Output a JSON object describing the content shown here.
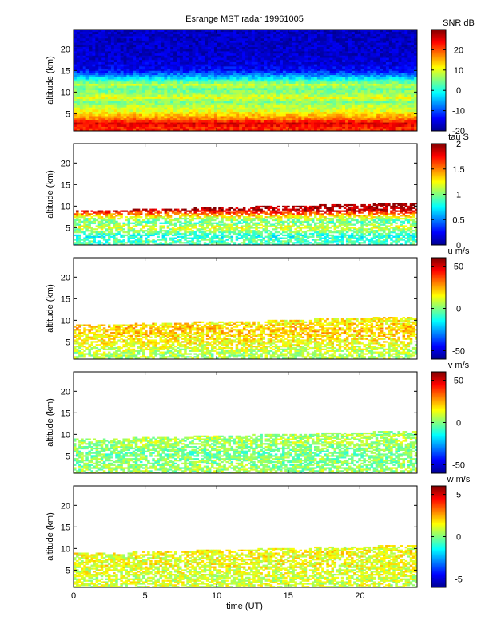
{
  "title": "Esrange MST radar 19961005",
  "xlabel": "time (UT)",
  "colormap": [
    "#00008f",
    "#0000ff",
    "#0080ff",
    "#00ffff",
    "#80ff80",
    "#ffff00",
    "#ff8000",
    "#ff0000",
    "#800000"
  ],
  "chart_data": [
    {
      "type": "heatmap",
      "variable": "SNR",
      "colorbar_label": "SNR dB",
      "xlim": [
        0,
        24
      ],
      "ylim": [
        1,
        24.5
      ],
      "xticks": [
        0,
        5,
        10,
        15,
        20
      ],
      "ylabel": "altitude (km)",
      "yticks": [
        5,
        10,
        15,
        20
      ],
      "clim": [
        -20,
        30
      ],
      "cticks": [
        -20,
        -10,
        0,
        10,
        20
      ],
      "profile": [
        {
          "alt": 1.5,
          "value": 22
        },
        {
          "alt": 2.5,
          "value": 25
        },
        {
          "alt": 3.5,
          "value": 18
        },
        {
          "alt": 4.5,
          "value": 14
        },
        {
          "alt": 5.5,
          "value": 10
        },
        {
          "alt": 6.5,
          "value": 8
        },
        {
          "alt": 7.5,
          "value": 5
        },
        {
          "alt": 8.5,
          "value": 10
        },
        {
          "alt": 9.5,
          "value": 6
        },
        {
          "alt": 10.5,
          "value": 4
        },
        {
          "alt": 11.5,
          "value": 8
        },
        {
          "alt": 12.5,
          "value": 1
        },
        {
          "alt": 13.5,
          "value": -6
        },
        {
          "alt": 15,
          "value": -14
        },
        {
          "alt": 17,
          "value": -16
        },
        {
          "alt": 20,
          "value": -17
        },
        {
          "alt": 23,
          "value": -17
        }
      ]
    },
    {
      "type": "heatmap",
      "variable": "tau",
      "colorbar_label": "tau S",
      "xlim": [
        0,
        24
      ],
      "ylim": [
        1,
        24.5
      ],
      "xticks": [
        0,
        5,
        10,
        15,
        20
      ],
      "ylabel": "altitude (km)",
      "yticks": [
        5,
        10,
        15,
        20
      ],
      "clim": [
        0,
        2
      ],
      "cticks": [
        0,
        0.5,
        1,
        1.5,
        2
      ],
      "profile": [
        {
          "alt": 2,
          "value": 0.9
        },
        {
          "alt": 3,
          "value": 0.8
        },
        {
          "alt": 4,
          "value": 1.0
        },
        {
          "alt": 5,
          "value": 1.2
        },
        {
          "alt": 6,
          "value": 0.9
        },
        {
          "alt": 7,
          "value": 1.1
        },
        {
          "alt": 8,
          "value": 1.5
        },
        {
          "alt": 9,
          "value": 1.9
        },
        {
          "alt": 10,
          "value": 1.95
        }
      ]
    },
    {
      "type": "heatmap",
      "variable": "u",
      "colorbar_label": "u m/s",
      "xlim": [
        0,
        24
      ],
      "ylim": [
        1,
        24.5
      ],
      "xticks": [
        0,
        5,
        10,
        15,
        20
      ],
      "ylabel": "altitude (km)",
      "yticks": [
        5,
        10,
        15,
        20
      ],
      "clim": [
        -60,
        60
      ],
      "cticks": [
        -50,
        0,
        50
      ],
      "profile": [
        {
          "alt": 2,
          "value": 5
        },
        {
          "alt": 3,
          "value": 8
        },
        {
          "alt": 4,
          "value": 12
        },
        {
          "alt": 5,
          "value": 15
        },
        {
          "alt": 6,
          "value": 18
        },
        {
          "alt": 7,
          "value": 20
        },
        {
          "alt": 8,
          "value": 22
        },
        {
          "alt": 9,
          "value": 18
        },
        {
          "alt": 10,
          "value": 15
        }
      ]
    },
    {
      "type": "heatmap",
      "variable": "v",
      "colorbar_label": "v m/s",
      "xlim": [
        0,
        24
      ],
      "ylim": [
        1,
        24.5
      ],
      "xticks": [
        0,
        5,
        10,
        15,
        20
      ],
      "ylabel": "altitude (km)",
      "yticks": [
        5,
        10,
        15,
        20
      ],
      "clim": [
        -60,
        60
      ],
      "cticks": [
        -50,
        0,
        50
      ],
      "profile": [
        {
          "alt": 2,
          "value": 3
        },
        {
          "alt": 3,
          "value": 0
        },
        {
          "alt": 4,
          "value": 2
        },
        {
          "alt": 5,
          "value": -2
        },
        {
          "alt": 6,
          "value": 0
        },
        {
          "alt": 7,
          "value": 2
        },
        {
          "alt": 8,
          "value": 4
        },
        {
          "alt": 9,
          "value": 5
        },
        {
          "alt": 10,
          "value": 3
        }
      ]
    },
    {
      "type": "heatmap",
      "variable": "w",
      "colorbar_label": "w m/s",
      "xlim": [
        0,
        24
      ],
      "ylim": [
        1,
        24.5
      ],
      "xticks": [
        0,
        5,
        10,
        15,
        20
      ],
      "ylabel": "altitude (km)",
      "yticks": [
        5,
        10,
        15,
        20
      ],
      "clim": [
        -6,
        6
      ],
      "cticks": [
        -5,
        0,
        5
      ],
      "xlabel": "time (UT)",
      "profile": [
        {
          "alt": 2,
          "value": 1.0
        },
        {
          "alt": 3,
          "value": 0.8
        },
        {
          "alt": 4,
          "value": 1.2
        },
        {
          "alt": 5,
          "value": 1.0
        },
        {
          "alt": 6,
          "value": 1.4
        },
        {
          "alt": 7,
          "value": 1.2
        },
        {
          "alt": 8,
          "value": 1.3
        },
        {
          "alt": 9,
          "value": 1.5
        },
        {
          "alt": 10,
          "value": 1.2
        }
      ]
    }
  ]
}
